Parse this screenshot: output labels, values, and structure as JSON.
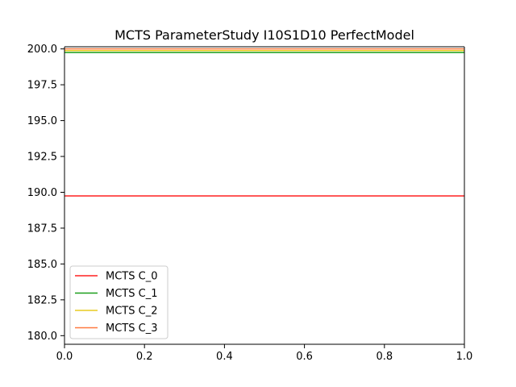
{
  "chart_data": {
    "type": "line",
    "title": "MCTS ParameterStudy I10S1D10 PerfectModel",
    "xlim": [
      0.0,
      1.0
    ],
    "ylim": [
      179.4,
      200.15
    ],
    "x_ticks": [
      "0.0",
      "0.2",
      "0.4",
      "0.6",
      "0.8",
      "1.0"
    ],
    "y_ticks": [
      "180.0",
      "182.5",
      "185.0",
      "187.5",
      "190.0",
      "192.5",
      "195.0",
      "197.5",
      "200.0"
    ],
    "legend_position": "lower-left",
    "grid": false,
    "x": [
      0.0,
      1.0
    ],
    "series": [
      {
        "name": "MCTS C_0",
        "color": "#ff2020",
        "values": [
          189.75,
          189.75
        ]
      },
      {
        "name": "MCTS C_1",
        "color": "#1a9e1a",
        "values": [
          199.75,
          199.75
        ]
      },
      {
        "name": "MCTS C_2",
        "color": "#e8cc20",
        "values": [
          199.88,
          199.88
        ]
      },
      {
        "name": "MCTS C_3",
        "color": "#ff7a40",
        "values": [
          200.0,
          200.0
        ]
      }
    ]
  }
}
